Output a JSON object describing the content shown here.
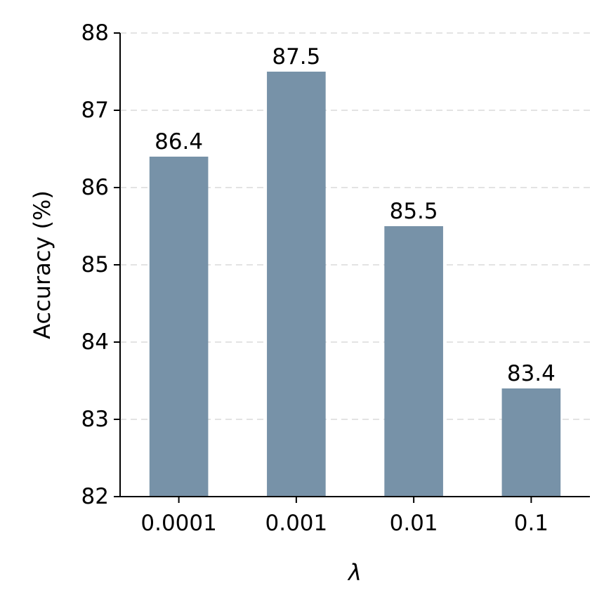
{
  "chart_data": {
    "type": "bar",
    "categories": [
      "0.0001",
      "0.001",
      "0.01",
      "0.1"
    ],
    "values": [
      86.4,
      87.5,
      85.5,
      83.4
    ],
    "data_labels": [
      "86.4",
      "87.5",
      "85.5",
      "83.4"
    ],
    "xlabel": "λ",
    "ylabel": "Accuracy (%)",
    "ylim": [
      82,
      88
    ],
    "yticks": [
      "82",
      "83",
      "84",
      "85",
      "86",
      "87",
      "88"
    ],
    "grid": "y-dashed",
    "bar_color": "#7792a8",
    "grid_color": "#e3e3e3"
  }
}
